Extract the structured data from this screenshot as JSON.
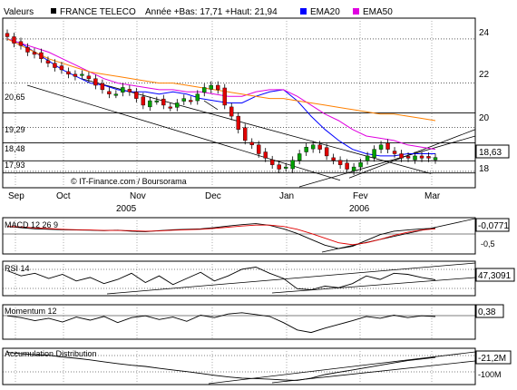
{
  "header": {
    "label": "Valeurs",
    "name": "FRANCE TELECO",
    "range": "Année +Bas: 17,71 +Haut: 21,94",
    "legend": [
      {
        "name": "EMA20",
        "color": "#0000ff"
      },
      {
        "name": "EMA50",
        "color": "#e000e0"
      }
    ]
  },
  "credit": "© IT-Finance.com / Boursorama",
  "months": [
    "Sep",
    "Oct",
    "Nov",
    "Dec",
    "Jan",
    "Fev",
    "Mar"
  ],
  "years": [
    "2005",
    "2006"
  ],
  "colors": {
    "up": "#00a000",
    "down": "#e00000",
    "ema20": "#0000ff",
    "ema50": "#e000e0",
    "ema200": "#ff8000"
  },
  "chart_data": [
    {
      "type": "candlestick",
      "title": "FRANCE TELECO",
      "yticks": [
        "24",
        "22",
        "20",
        "18"
      ],
      "level_labels": [
        "20,65",
        "19,29",
        "18,48",
        "17,93"
      ],
      "last_value": "18,63",
      "ylim": [
        17.3,
        24.9
      ],
      "series": [
        {
          "name": "EMA20",
          "values": [
            24.0,
            23.8,
            23.4,
            23.0,
            22.6,
            22.3,
            22.0,
            21.9,
            21.7,
            21.6,
            21.6,
            21.5,
            21.6,
            21.5,
            21.3,
            21.2,
            21.1,
            21.1,
            21.4,
            21.6,
            21.7,
            21.2,
            20.5,
            19.9,
            19.4,
            19.0,
            18.8,
            18.7,
            18.7,
            18.8,
            18.8,
            18.8
          ]
        },
        {
          "name": "EMA50",
          "values": [
            24.0,
            23.8,
            23.6,
            23.4,
            23.1,
            22.8,
            22.5,
            22.2,
            22.0,
            21.9,
            21.8,
            21.7,
            21.7,
            21.6,
            21.6,
            21.5,
            21.4,
            21.4,
            21.6,
            21.7,
            21.7,
            21.4,
            21.0,
            20.6,
            20.3,
            19.9,
            19.6,
            19.5,
            19.4,
            19.2,
            19.1,
            19.0
          ]
        },
        {
          "name": "EMA200",
          "values": [
            24.0,
            23.7,
            23.4,
            23.1,
            22.9,
            22.7,
            22.5,
            22.4,
            22.3,
            22.2,
            22.1,
            22.0,
            22.0,
            21.9,
            21.8,
            21.7,
            21.6,
            21.5,
            21.4,
            21.3,
            21.3,
            21.2,
            21.1,
            21.0,
            20.9,
            20.8,
            20.7,
            20.6,
            20.6,
            20.5,
            20.4,
            20.3
          ]
        }
      ],
      "closes": [
        24.1,
        23.8,
        23.7,
        23.4,
        23.3,
        23.1,
        22.9,
        22.7,
        22.6,
        22.4,
        22.3,
        22.4,
        22.2,
        21.9,
        21.7,
        21.5,
        21.5,
        21.8,
        21.6,
        21.3,
        21.0,
        21.2,
        21.2,
        21.0,
        20.9,
        21.1,
        21.3,
        21.2,
        21.5,
        21.8,
        21.9,
        21.7,
        21.0,
        20.5,
        19.9,
        19.4,
        19.2,
        18.8,
        18.6,
        18.3,
        18.1,
        18.2,
        18.5,
        18.8,
        19.1,
        19.2,
        19.0,
        18.7,
        18.5,
        18.3,
        18.1,
        18.2,
        18.4,
        18.7,
        19.0,
        19.2,
        19.0,
        18.8,
        18.6,
        18.6,
        18.7,
        18.6,
        18.6,
        18.63
      ]
    },
    {
      "type": "line",
      "title": "MACD 12 26 9",
      "last_value": "-0,0771",
      "yticks": [
        "-0,5"
      ],
      "ylim": [
        -1.1,
        0.3
      ],
      "series": [
        {
          "name": "MACD",
          "values": [
            0.0,
            -0.05,
            -0.1,
            -0.12,
            -0.14,
            -0.15,
            -0.16,
            -0.18,
            -0.16,
            -0.2,
            -0.22,
            -0.18,
            -0.14,
            -0.12,
            -0.1,
            -0.05,
            0.02,
            0.08,
            0.12,
            0.05,
            -0.1,
            -0.3,
            -0.55,
            -0.8,
            -0.95,
            -0.85,
            -0.6,
            -0.35,
            -0.2,
            -0.15,
            -0.1,
            -0.077
          ]
        },
        {
          "name": "Signal",
          "values": [
            0.0,
            -0.02,
            -0.06,
            -0.09,
            -0.12,
            -0.14,
            -0.15,
            -0.17,
            -0.17,
            -0.18,
            -0.2,
            -0.19,
            -0.16,
            -0.14,
            -0.12,
            -0.08,
            -0.03,
            0.02,
            0.06,
            0.06,
            0.0,
            -0.12,
            -0.3,
            -0.5,
            -0.7,
            -0.78,
            -0.7,
            -0.55,
            -0.38,
            -0.25,
            -0.15,
            -0.1
          ]
        }
      ]
    },
    {
      "type": "line",
      "title": "RSI 14",
      "last_value": "47,3091",
      "ylim": [
        20,
        80
      ],
      "series": [
        {
          "name": "RSI",
          "values": [
            65,
            55,
            60,
            50,
            58,
            45,
            52,
            40,
            48,
            60,
            42,
            55,
            38,
            50,
            62,
            45,
            55,
            68,
            72,
            60,
            50,
            30,
            28,
            35,
            32,
            40,
            55,
            48,
            60,
            58,
            52,
            47.3
          ]
        }
      ]
    },
    {
      "type": "line",
      "title": "Momentum 12",
      "last_value": "0,38",
      "ylim": [
        -3,
        2
      ],
      "series": [
        {
          "name": "Momentum",
          "values": [
            0.5,
            0.2,
            -0.3,
            0.1,
            -0.5,
            0.3,
            -0.2,
            0.4,
            -0.6,
            0.2,
            0.5,
            -0.1,
            0.3,
            -0.4,
            0.6,
            0.2,
            0.8,
            1.0,
            0.7,
            0.4,
            -0.6,
            -1.8,
            -2.2,
            -1.5,
            -0.9,
            -0.3,
            0.4,
            0.1,
            0.6,
            0.2,
            0.5,
            0.38
          ]
        }
      ]
    },
    {
      "type": "line",
      "title": "Accumulation Distribution",
      "last_value": "-21,2M",
      "yticks": [
        "-100M"
      ],
      "ylim": [
        -130,
        10
      ],
      "series": [
        {
          "name": "A/D",
          "values": [
            0,
            -5,
            -10,
            -12,
            -20,
            -25,
            -32,
            -40,
            -48,
            -55,
            -60,
            -68,
            -75,
            -82,
            -90,
            -98,
            -105,
            -110,
            -112,
            -115,
            -118,
            -120,
            -110,
            -95,
            -85,
            -75,
            -65,
            -55,
            -45,
            -35,
            -28,
            -21.2
          ]
        }
      ]
    }
  ]
}
